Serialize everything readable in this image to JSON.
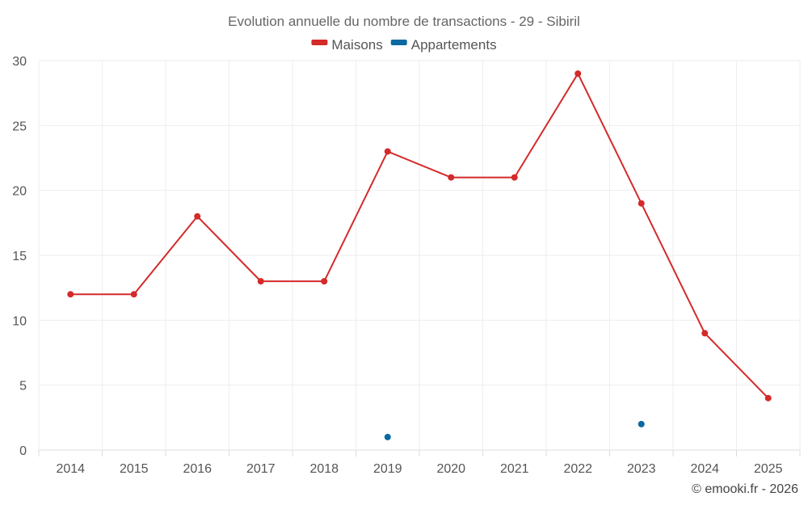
{
  "chart_data": {
    "type": "line",
    "title": "Evolution annuelle du nombre de transactions - 29 - Sibiril",
    "categories": [
      "2014",
      "2015",
      "2016",
      "2017",
      "2018",
      "2019",
      "2020",
      "2021",
      "2022",
      "2023",
      "2024",
      "2025"
    ],
    "ylim": [
      0,
      30
    ],
    "yticks": [
      0,
      5,
      10,
      15,
      20,
      25,
      30
    ],
    "grid": true,
    "legend_position": "top-center",
    "series": [
      {
        "name": "Maisons",
        "color": "#d42a2a",
        "values": [
          12,
          12,
          18,
          13,
          13,
          23,
          21,
          21,
          29,
          19,
          9,
          4
        ]
      },
      {
        "name": "Appartements",
        "color": "#0b6aa2",
        "values": [
          null,
          null,
          null,
          null,
          null,
          1,
          null,
          null,
          null,
          2,
          null,
          null
        ]
      }
    ],
    "credit": "© emooki.fr - 2026"
  }
}
